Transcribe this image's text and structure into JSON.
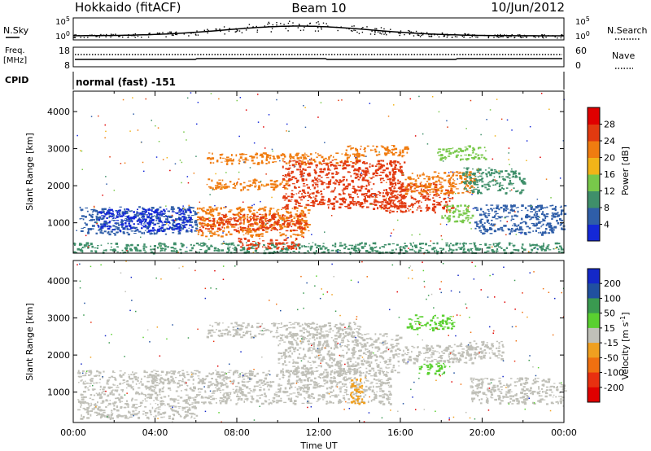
{
  "header": {
    "site": "Hokkaido (fitACF)",
    "beam": "Beam 10",
    "date": "10/Jun/2012"
  },
  "nsky_panel": {
    "left_label": "N.Sky",
    "right_label": "N.Search",
    "left_ticks": [
      "10^5",
      "10^0"
    ],
    "right_ticks": [
      "10^5",
      "10^0"
    ]
  },
  "freq_panel": {
    "left_label_1": "Freq.",
    "left_label_2": "[MHz]",
    "left_ticks": [
      "18",
      "8"
    ],
    "right_label": "Nave",
    "right_ticks": [
      "60",
      "0"
    ]
  },
  "cpid_panel": {
    "label": "CPID",
    "value": "normal (fast) -151"
  },
  "chart_data": [
    {
      "type": "heatmap",
      "name": "power",
      "ylabel": "Slant Range [km]",
      "xlabel": "",
      "ylim": [
        180,
        4550
      ],
      "yticks": [
        "1000",
        "2000",
        "3000",
        "4000"
      ],
      "xlim": [
        0,
        24
      ],
      "colorbar": {
        "label": "Power [dB]",
        "ticks": [
          "4",
          "8",
          "12",
          "16",
          "20",
          "24",
          "28"
        ],
        "colors": [
          "#1428d8",
          "#2f5ea8",
          "#3f8f6a",
          "#78c84a",
          "#f2b418",
          "#f07c10",
          "#e23a10",
          "#e00000"
        ]
      },
      "regions": [
        {
          "t0": 0.3,
          "t1": 6.0,
          "r0": 700,
          "r1": 1450,
          "v": "#2f5ea8"
        },
        {
          "t0": 1.2,
          "t1": 5.8,
          "r0": 800,
          "r1": 1400,
          "v": "#1428d8"
        },
        {
          "t0": 0.0,
          "t1": 23.9,
          "r0": 200,
          "r1": 480,
          "v": "#3f8f6a"
        },
        {
          "t0": 6.0,
          "t1": 11.5,
          "r0": 650,
          "r1": 1450,
          "v": "#f07c10"
        },
        {
          "t0": 6.1,
          "t1": 11.4,
          "r0": 800,
          "r1": 1250,
          "v": "#e23a10"
        },
        {
          "t0": 6.5,
          "t1": 10.5,
          "r0": 1900,
          "r1": 2200,
          "v": "#f07c10"
        },
        {
          "t0": 6.5,
          "t1": 14.0,
          "r0": 2600,
          "r1": 2900,
          "v": "#f07c10"
        },
        {
          "t0": 8.0,
          "t1": 11.0,
          "r0": 300,
          "r1": 600,
          "v": "#e23a10"
        },
        {
          "t0": 10.2,
          "t1": 16.2,
          "r0": 1400,
          "r1": 2700,
          "v": "#e23a10"
        },
        {
          "t0": 13.3,
          "t1": 16.4,
          "r0": 2800,
          "r1": 3100,
          "v": "#f07c10"
        },
        {
          "t0": 15.2,
          "t1": 18.6,
          "r0": 1300,
          "r1": 2100,
          "v": "#e23a10"
        },
        {
          "t0": 16.2,
          "t1": 19.6,
          "r0": 1800,
          "r1": 2400,
          "v": "#f07c10"
        },
        {
          "t0": 17.8,
          "t1": 20.2,
          "r0": 2700,
          "r1": 3100,
          "v": "#78c84a"
        },
        {
          "t0": 19.6,
          "t1": 24.0,
          "r0": 700,
          "r1": 1500,
          "v": "#2f5ea8"
        },
        {
          "t0": 19.0,
          "t1": 22.0,
          "r0": 1800,
          "r1": 2500,
          "v": "#3f8f6a"
        },
        {
          "t0": 18.0,
          "t1": 19.5,
          "r0": 1000,
          "r1": 1500,
          "v": "#78c84a"
        }
      ]
    },
    {
      "type": "heatmap",
      "name": "velocity",
      "ylabel": "Slant Range [km]",
      "xlabel": "Time UT",
      "ylim": [
        180,
        4550
      ],
      "yticks": [
        "1000",
        "2000",
        "3000",
        "4000"
      ],
      "xlim": [
        0,
        24
      ],
      "xticks": [
        "00:00",
        "04:00",
        "08:00",
        "12:00",
        "16:00",
        "20:00",
        "00:00"
      ],
      "colorbar": {
        "label": "Velocity [m s^-1]",
        "ticks": [
          "200",
          "100",
          "50",
          "15",
          "-15",
          "-50",
          "-100",
          "-200"
        ],
        "colors": [
          "#1428c8",
          "#2050a0",
          "#3a9a50",
          "#5ad030",
          "#c0c0b8",
          "#f0a020",
          "#f07010",
          "#e83010",
          "#e00000"
        ]
      },
      "regions": [
        {
          "t0": 0.2,
          "t1": 6.0,
          "r0": 300,
          "r1": 1600,
          "v": "#c0c0b8"
        },
        {
          "t0": 6.0,
          "t1": 15.5,
          "r0": 700,
          "r1": 1600,
          "v": "#c0c0b8"
        },
        {
          "t0": 6.5,
          "t1": 14.0,
          "r0": 2500,
          "r1": 2900,
          "v": "#c0c0b8"
        },
        {
          "t0": 10.0,
          "t1": 16.0,
          "r0": 1500,
          "r1": 2600,
          "v": "#c0c0b8"
        },
        {
          "t0": 16.0,
          "t1": 19.5,
          "r0": 1800,
          "r1": 2300,
          "v": "#c0c0b8"
        },
        {
          "t0": 13.5,
          "t1": 14.2,
          "r0": 700,
          "r1": 1400,
          "v": "#f0a020"
        },
        {
          "t0": 16.3,
          "t1": 18.6,
          "r0": 2700,
          "r1": 3100,
          "v": "#5ad030"
        },
        {
          "t0": 16.8,
          "t1": 18.2,
          "r0": 1500,
          "r1": 1800,
          "v": "#5ad030"
        },
        {
          "t0": 19.4,
          "t1": 24.0,
          "r0": 700,
          "r1": 1400,
          "v": "#c0c0b8"
        },
        {
          "t0": 18.8,
          "t1": 21.0,
          "r0": 1900,
          "r1": 2400,
          "v": "#c0c0b8"
        }
      ]
    }
  ]
}
